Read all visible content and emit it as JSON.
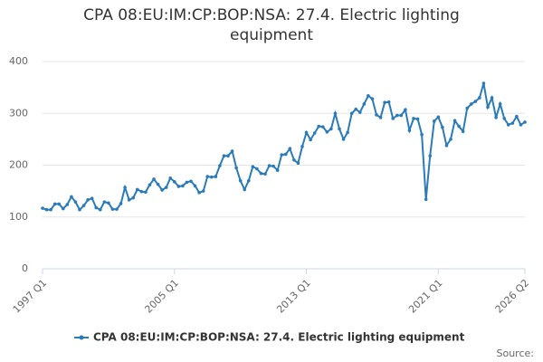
{
  "chart_data": {
    "type": "line",
    "title": "CPA 08:EU:IM:CP:BOP:NSA: 27.4. Electric lighting equipment",
    "categories": [
      "1997 Q1",
      null,
      null,
      null,
      null,
      null,
      null,
      null,
      null,
      null,
      null,
      null,
      null,
      null,
      null,
      null,
      null,
      null,
      null,
      null,
      null,
      null,
      null,
      null,
      null,
      null,
      null,
      null,
      null,
      null,
      null,
      null,
      "2005 Q1",
      null,
      null,
      null,
      null,
      null,
      null,
      null,
      null,
      null,
      null,
      null,
      null,
      null,
      null,
      null,
      null,
      null,
      null,
      null,
      null,
      null,
      null,
      null,
      null,
      null,
      null,
      null,
      null,
      null,
      null,
      null,
      "2013 Q1",
      null,
      null,
      null,
      null,
      null,
      null,
      null,
      null,
      null,
      null,
      null,
      null,
      null,
      null,
      null,
      null,
      null,
      null,
      null,
      null,
      null,
      null,
      null,
      null,
      null,
      null,
      null,
      null,
      null,
      null,
      null,
      "2021 Q1",
      null,
      null,
      null,
      null,
      null,
      null,
      null,
      null,
      null,
      null,
      null,
      null,
      null,
      null,
      null,
      null,
      null,
      null,
      null,
      null,
      "2026 Q2"
    ],
    "series": [
      {
        "name": "CPA 08:EU:IM:CP:BOP:NSA: 27.4. Electric lighting equipment",
        "color": "#2b7bb9",
        "values": [
          117,
          114,
          114,
          125,
          125,
          116,
          124,
          139,
          129,
          114,
          122,
          133,
          136,
          118,
          114,
          129,
          127,
          115,
          115,
          126,
          157,
          133,
          137,
          153,
          149,
          148,
          162,
          173,
          163,
          152,
          157,
          175,
          168,
          159,
          160,
          167,
          169,
          160,
          147,
          150,
          178,
          177,
          178,
          199,
          218,
          218,
          227,
          195,
          170,
          153,
          170,
          197,
          193,
          184,
          183,
          199,
          198,
          190,
          220,
          221,
          232,
          210,
          204,
          236,
          263,
          249,
          262,
          275,
          274,
          264,
          270,
          300,
          270,
          250,
          263,
          300,
          308,
          302,
          318,
          334,
          328,
          297,
          292,
          321,
          322,
          290,
          296,
          296,
          307,
          267,
          290,
          289,
          259,
          134,
          218,
          285,
          293,
          273,
          238,
          250,
          286,
          275,
          265,
          310,
          318,
          323,
          330,
          358,
          312,
          330,
          292,
          318,
          290,
          278,
          281,
          294,
          278,
          283
        ]
      }
    ],
    "ylim": [
      0,
      400
    ],
    "yticks": [
      0,
      100,
      200,
      300,
      400
    ],
    "grid": true,
    "legend": "bottom",
    "source": "Source:"
  }
}
